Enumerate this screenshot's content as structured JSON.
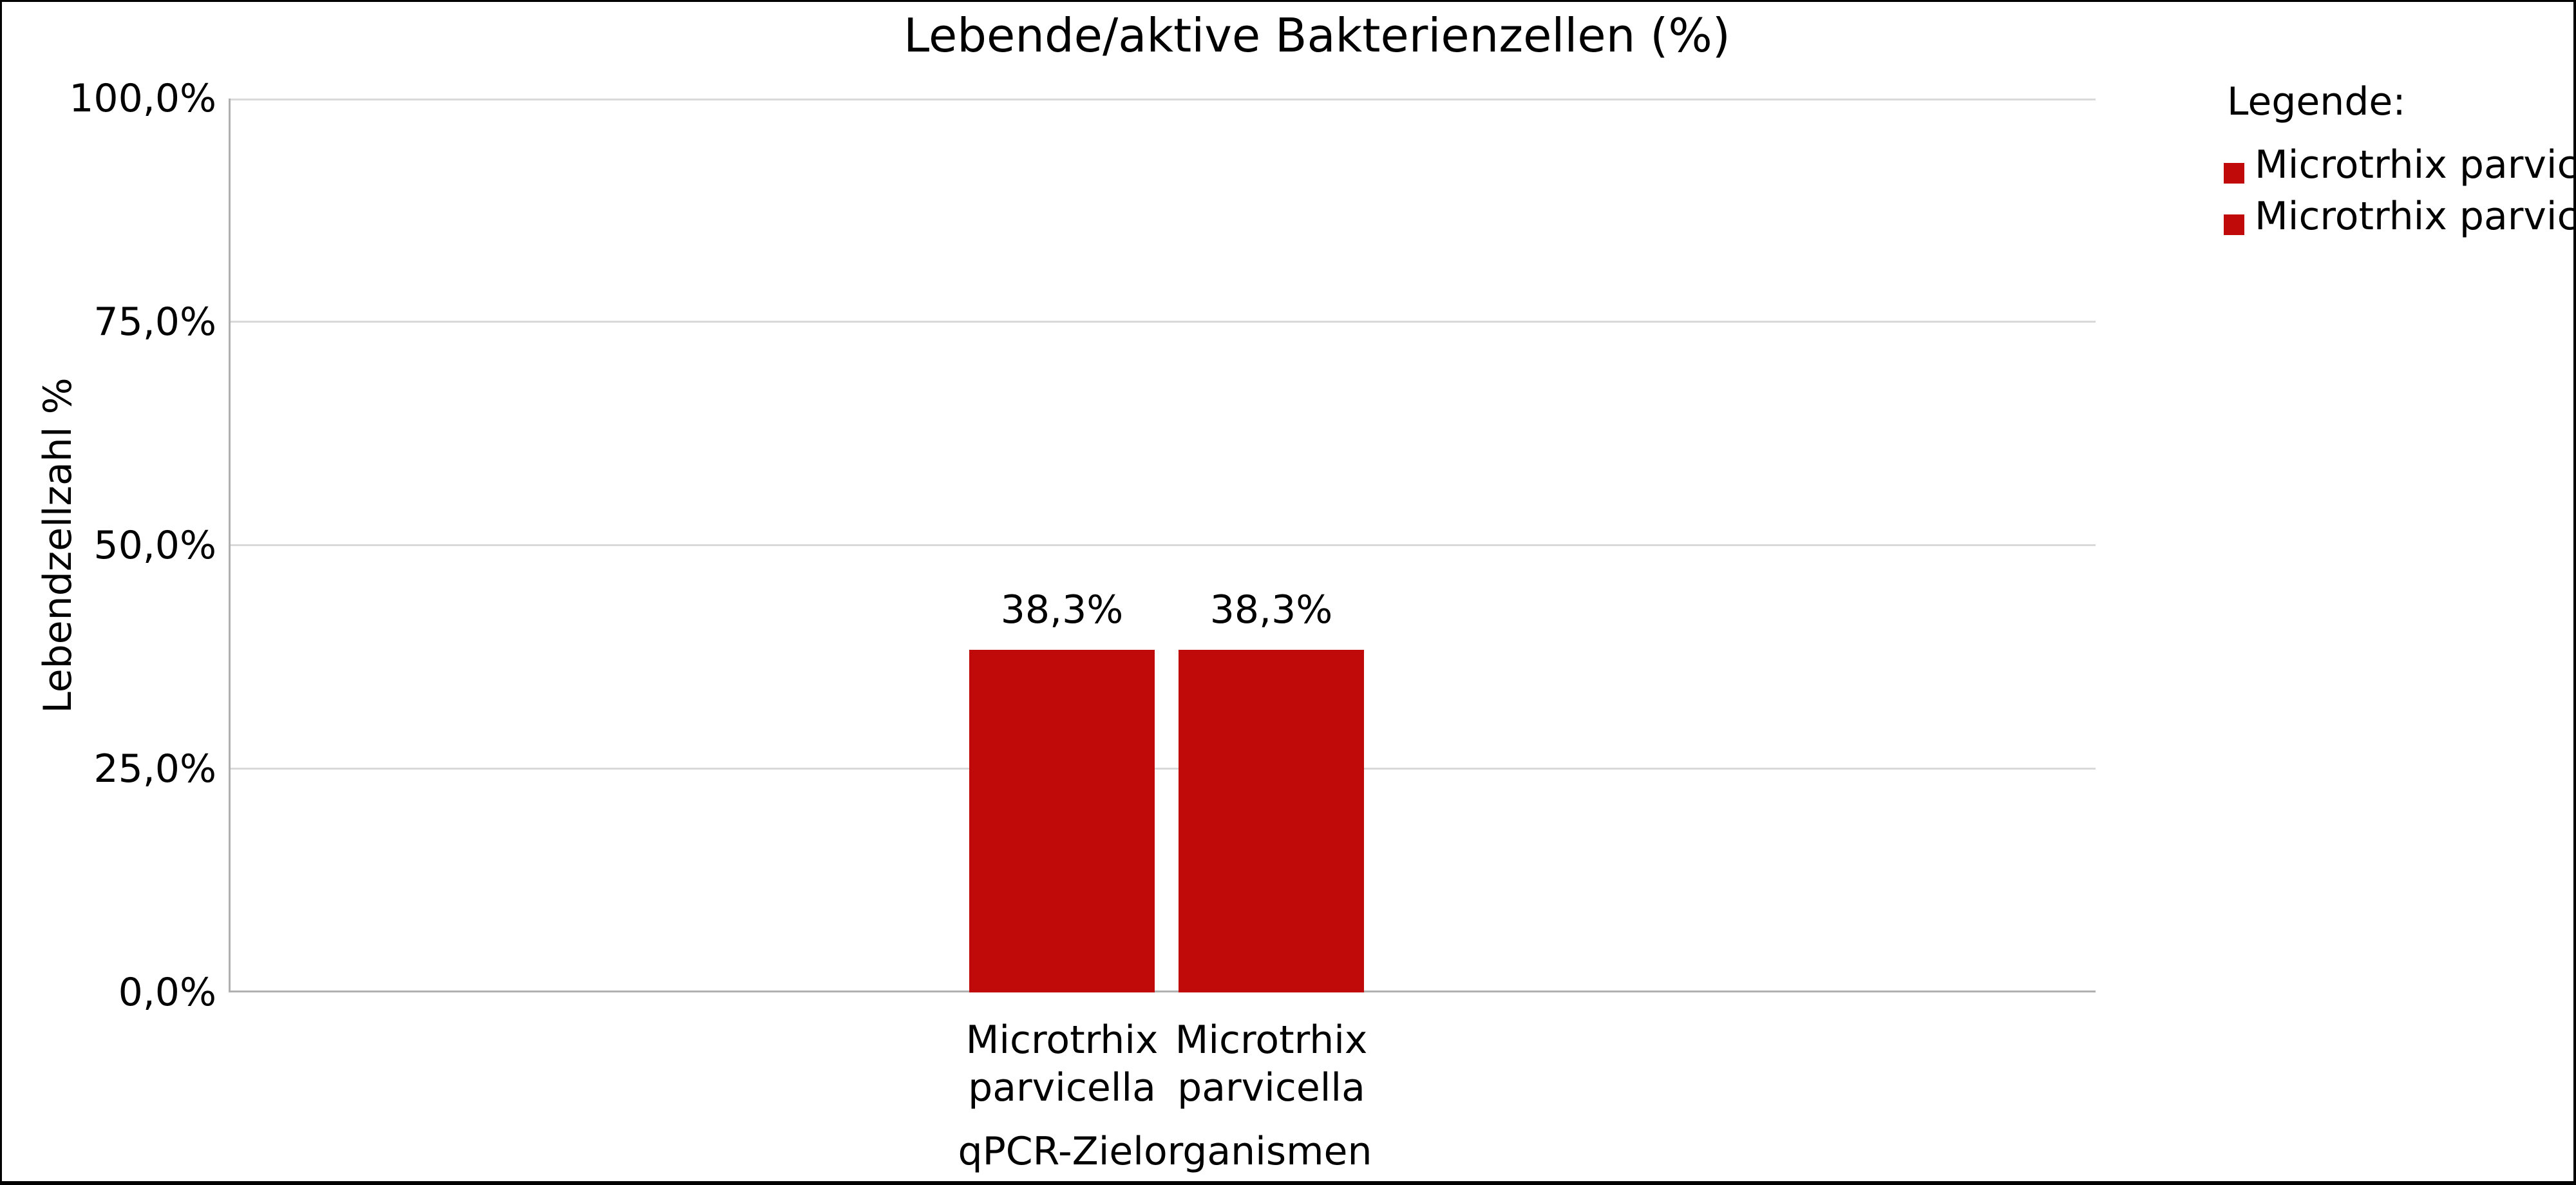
{
  "title": "Lebende/aktive Bakterienzellen (%)",
  "colors": {
    "bar": "#c00a0a",
    "gridline": "#d9d9d9",
    "axis_line": "#b0b0b0",
    "text": "#000000"
  },
  "y_axis": {
    "label": "Lebendzellzahl %",
    "ticks": [
      "100,0%",
      "75,0%",
      "50,0%",
      "25,0%",
      "0,0%"
    ]
  },
  "x_axis": {
    "label": "qPCR-Zielorganismen"
  },
  "bars": [
    {
      "name_line1": "Microtrhix",
      "name_line2": "parvicella",
      "value_label": "38,3%"
    },
    {
      "name_line1": "Microtrhix",
      "name_line2": "parvicella",
      "value_label": "38,3%"
    }
  ],
  "legend": {
    "heading": "Legende:",
    "items": [
      "Microtrhix parvicella",
      "Microtrhix parvicella"
    ]
  },
  "chart_data": {
    "type": "bar",
    "title": "Lebende/aktive Bakterienzellen (%)",
    "categories": [
      "Microtrhix parvicella",
      "Microtrhix parvicella"
    ],
    "values": [
      38.3,
      38.3
    ],
    "value_labels": [
      "38,3%",
      "38,3%"
    ],
    "xlabel": "qPCR-Zielorganismen",
    "ylabel": "Lebendzellzahl %",
    "ylim": [
      0,
      100
    ],
    "y_tick_step": 25,
    "y_tick_labels": [
      "0,0%",
      "25,0%",
      "50,0%",
      "75,0%",
      "100,0%"
    ],
    "grid": "horizontal",
    "legend_position": "top-right",
    "legend_title": "Legende:",
    "legend_entries": [
      "Microtrhix parvicella",
      "Microtrhix parvicella"
    ],
    "bar_color": "#c00a0a",
    "decimal_separator": ","
  }
}
